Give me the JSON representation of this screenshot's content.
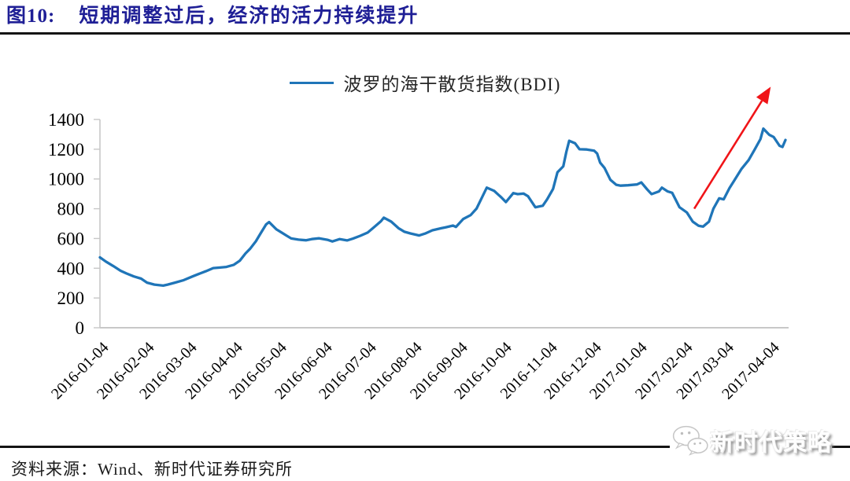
{
  "header": {
    "figure_label": "图10:",
    "figure_title": "短期调整过后，经济的活力持续提升"
  },
  "footer": {
    "source_text": "资料来源：Wind、新时代证券研究所",
    "logo_text": "新时代策略",
    "logo_icon": "wechat-bubbles-icon"
  },
  "chart_data": {
    "type": "line",
    "title": "",
    "xlabel": "",
    "ylabel": "",
    "legend": [
      "波罗的海干散货指数(BDI)"
    ],
    "legend_position": "top-center",
    "series_color": "#1F75B8",
    "axis_color": "#c8c8c8",
    "grid": false,
    "ylim": [
      0,
      1400
    ],
    "y_ticks": [
      0,
      200,
      400,
      600,
      800,
      1000,
      1200,
      1400
    ],
    "x_tick_rotation": 45,
    "x_ticks": [
      "2016-01-04",
      "2016-02-04",
      "2016-03-04",
      "2016-04-04",
      "2016-05-04",
      "2016-06-04",
      "2016-07-04",
      "2016-08-04",
      "2016-09-04",
      "2016-10-04",
      "2016-11-04",
      "2016-12-04",
      "2017-01-04",
      "2017-02-04",
      "2017-03-04",
      "2017-04-04"
    ],
    "annotation_arrow": {
      "color": "#F01418",
      "from": [
        "2017-02-11",
        800
      ],
      "to": [
        "2017-04-04",
        1620
      ]
    },
    "points": [
      [
        "2016-01-04",
        473
      ],
      [
        "2016-01-08",
        445
      ],
      [
        "2016-01-13",
        415
      ],
      [
        "2016-01-18",
        383
      ],
      [
        "2016-01-22",
        365
      ],
      [
        "2016-01-27",
        345
      ],
      [
        "2016-02-01",
        330
      ],
      [
        "2016-02-05",
        303
      ],
      [
        "2016-02-10",
        290
      ],
      [
        "2016-02-16",
        283
      ],
      [
        "2016-02-19",
        290
      ],
      [
        "2016-02-24",
        303
      ],
      [
        "2016-03-01",
        320
      ],
      [
        "2016-03-07",
        345
      ],
      [
        "2016-03-11",
        361
      ],
      [
        "2016-03-16",
        380
      ],
      [
        "2016-03-21",
        401
      ],
      [
        "2016-03-25",
        404
      ],
      [
        "2016-03-30",
        409
      ],
      [
        "2016-04-04",
        423
      ],
      [
        "2016-04-08",
        450
      ],
      [
        "2016-04-12",
        500
      ],
      [
        "2016-04-15",
        530
      ],
      [
        "2016-04-19",
        581
      ],
      [
        "2016-04-22",
        631
      ],
      [
        "2016-04-26",
        695
      ],
      [
        "2016-04-28",
        710
      ],
      [
        "2016-05-03",
        661
      ],
      [
        "2016-05-06",
        643
      ],
      [
        "2016-05-10",
        618
      ],
      [
        "2016-05-13",
        600
      ],
      [
        "2016-05-18",
        592
      ],
      [
        "2016-05-23",
        588
      ],
      [
        "2016-05-27",
        596
      ],
      [
        "2016-06-01",
        601
      ],
      [
        "2016-06-07",
        590
      ],
      [
        "2016-06-10",
        580
      ],
      [
        "2016-06-15",
        596
      ],
      [
        "2016-06-20",
        587
      ],
      [
        "2016-06-24",
        599
      ],
      [
        "2016-06-29",
        618
      ],
      [
        "2016-07-04",
        640
      ],
      [
        "2016-07-08",
        673
      ],
      [
        "2016-07-13",
        716
      ],
      [
        "2016-07-15",
        740
      ],
      [
        "2016-07-20",
        713
      ],
      [
        "2016-07-25",
        669
      ],
      [
        "2016-07-29",
        645
      ],
      [
        "2016-08-02",
        634
      ],
      [
        "2016-08-08",
        620
      ],
      [
        "2016-08-12",
        633
      ],
      [
        "2016-08-17",
        655
      ],
      [
        "2016-08-23",
        669
      ],
      [
        "2016-08-26",
        675
      ],
      [
        "2016-08-31",
        687
      ],
      [
        "2016-09-02",
        678
      ],
      [
        "2016-09-07",
        731
      ],
      [
        "2016-09-12",
        757
      ],
      [
        "2016-09-16",
        801
      ],
      [
        "2016-09-20",
        881
      ],
      [
        "2016-09-23",
        942
      ],
      [
        "2016-09-28",
        920
      ],
      [
        "2016-10-03",
        875
      ],
      [
        "2016-10-06",
        845
      ],
      [
        "2016-10-11",
        905
      ],
      [
        "2016-10-14",
        898
      ],
      [
        "2016-10-18",
        902
      ],
      [
        "2016-10-21",
        884
      ],
      [
        "2016-10-26",
        810
      ],
      [
        "2016-10-31",
        820
      ],
      [
        "2016-11-03",
        863
      ],
      [
        "2016-11-07",
        933
      ],
      [
        "2016-11-10",
        1045
      ],
      [
        "2016-11-14",
        1085
      ],
      [
        "2016-11-16",
        1180
      ],
      [
        "2016-11-18",
        1257
      ],
      [
        "2016-11-22",
        1240
      ],
      [
        "2016-11-25",
        1200
      ],
      [
        "2016-11-30",
        1198
      ],
      [
        "2016-12-05",
        1190
      ],
      [
        "2016-12-07",
        1171
      ],
      [
        "2016-12-09",
        1110
      ],
      [
        "2016-12-12",
        1074
      ],
      [
        "2016-12-16",
        995
      ],
      [
        "2016-12-20",
        961
      ],
      [
        "2016-12-23",
        955
      ],
      [
        "2016-12-28",
        958
      ],
      [
        "2017-01-03",
        963
      ],
      [
        "2017-01-06",
        977
      ],
      [
        "2017-01-10",
        930
      ],
      [
        "2017-01-13",
        898
      ],
      [
        "2017-01-18",
        916
      ],
      [
        "2017-01-20",
        942
      ],
      [
        "2017-01-24",
        916
      ],
      [
        "2017-01-27",
        907
      ],
      [
        "2017-02-01",
        810
      ],
      [
        "2017-02-06",
        775
      ],
      [
        "2017-02-10",
        713
      ],
      [
        "2017-02-14",
        685
      ],
      [
        "2017-02-17",
        680
      ],
      [
        "2017-02-21",
        713
      ],
      [
        "2017-02-24",
        800
      ],
      [
        "2017-02-28",
        870
      ],
      [
        "2017-03-03",
        863
      ],
      [
        "2017-03-07",
        939
      ],
      [
        "2017-03-10",
        986
      ],
      [
        "2017-03-15",
        1066
      ],
      [
        "2017-03-20",
        1127
      ],
      [
        "2017-03-24",
        1196
      ],
      [
        "2017-03-28",
        1268
      ],
      [
        "2017-03-30",
        1338
      ],
      [
        "2017-04-03",
        1297
      ],
      [
        "2017-04-06",
        1282
      ],
      [
        "2017-04-10",
        1223
      ],
      [
        "2017-04-12",
        1215
      ],
      [
        "2017-04-14",
        1262
      ]
    ]
  }
}
